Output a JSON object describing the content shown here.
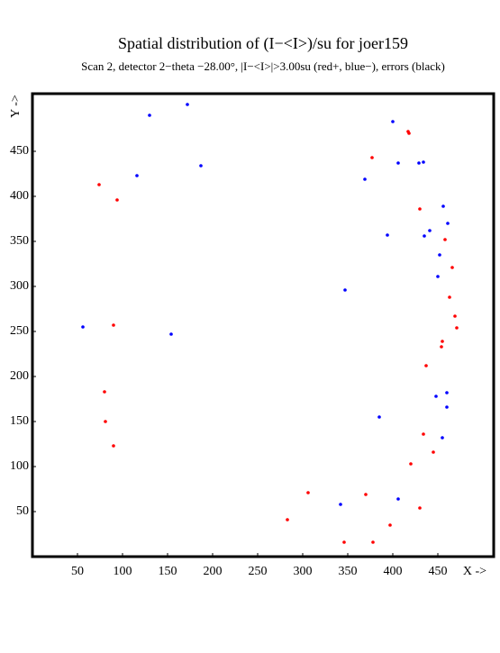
{
  "chart_data": {
    "type": "scatter",
    "title": "Spatial distribution of (I−<I>)/su for joer159",
    "subtitle": "Scan  2, detector 2−theta −28.00°, |I−<I>|>3.00su (red+, blue−), errors (black)",
    "x_label": "X ->",
    "y_label": "Y ->",
    "xlim": [
      0,
      512
    ],
    "ylim": [
      0,
      514
    ],
    "xticks": [
      50,
      100,
      150,
      200,
      250,
      300,
      350,
      400,
      450
    ],
    "yticks": [
      50,
      100,
      150,
      200,
      250,
      300,
      350,
      400,
      450
    ],
    "series": [
      {
        "color": "#0000ff",
        "x": [
          130,
          172,
          116,
          187,
          400,
          406,
          429,
          434,
          369,
          456,
          461,
          394,
          441,
          435,
          452,
          450,
          347,
          56,
          154,
          460,
          448,
          460,
          385,
          455,
          406,
          342
        ],
        "values": [
          490,
          502,
          423,
          434,
          483,
          437,
          437,
          438,
          419,
          389,
          370,
          357,
          362,
          356,
          335,
          311,
          296,
          255,
          247,
          182,
          178,
          166,
          155,
          132,
          64,
          58
        ]
      },
      {
        "color": "#ff0000",
        "x": [
          417,
          418,
          377,
          74,
          94,
          430,
          458,
          466,
          463,
          469,
          471,
          455,
          454,
          90,
          437,
          80,
          81,
          90,
          434,
          445,
          420,
          306,
          370,
          430,
          283,
          397,
          346,
          378
        ],
        "values": [
          472,
          470,
          443,
          413,
          396,
          386,
          352,
          321,
          288,
          267,
          254,
          239,
          233,
          257,
          212,
          183,
          150,
          123,
          136,
          116,
          103,
          71,
          69,
          54,
          41,
          35,
          16,
          16
        ]
      }
    ]
  }
}
